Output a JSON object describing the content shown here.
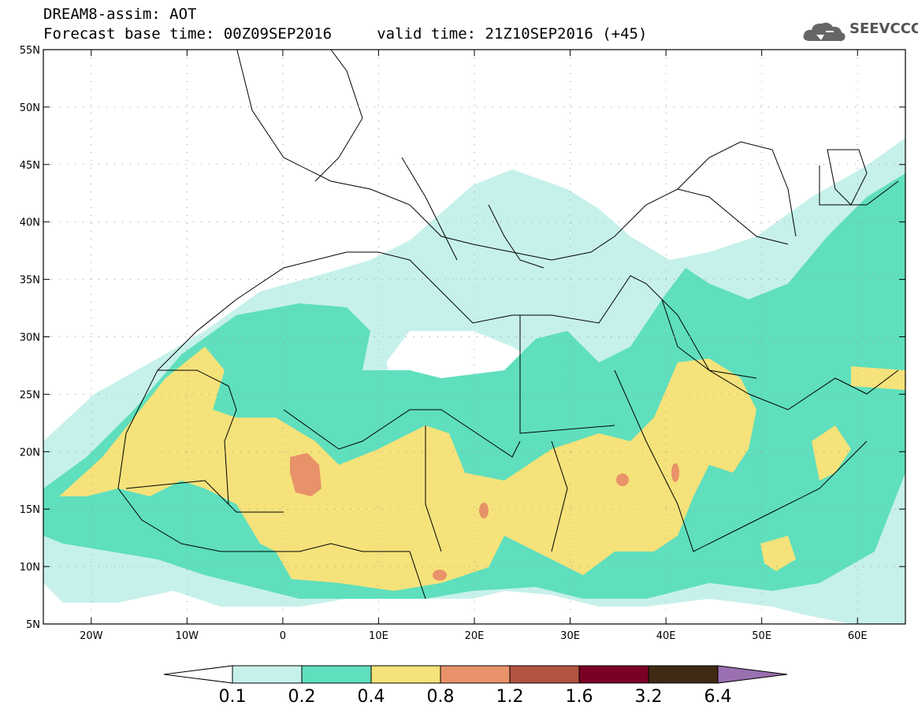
{
  "header": {
    "title_line1": "DREAM8-assim: AOT",
    "title_line2": "Forecast base time: 00Z09SEP2016     valid time: 21Z10SEP2016 (+45)"
  },
  "logo": {
    "text": "SEEVCCC",
    "icon": "cloud-icon"
  },
  "map": {
    "projection": "lat-lon",
    "lon_range": [
      -25,
      65
    ],
    "lat_range": [
      5,
      55
    ],
    "lat_labels": [
      "55N",
      "50N",
      "45N",
      "40N",
      "35N",
      "30N",
      "25N",
      "20N",
      "15N",
      "10N",
      "5N"
    ],
    "lon_labels": [
      "20W",
      "10W",
      "0",
      "10E",
      "20E",
      "30E",
      "40E",
      "50E",
      "60E"
    ],
    "grid": "dotted"
  },
  "colorbar": {
    "labels": [
      "0.1",
      "0.2",
      "0.4",
      "0.8",
      "1.2",
      "1.6",
      "3.2",
      "6.4"
    ],
    "colors": [
      "#ffffff",
      "#c6f1ea",
      "#5fdfbd",
      "#f5e27a",
      "#e8926a",
      "#b25440",
      "#7a0025",
      "#3f2a14",
      "#9a70b0"
    ]
  }
}
